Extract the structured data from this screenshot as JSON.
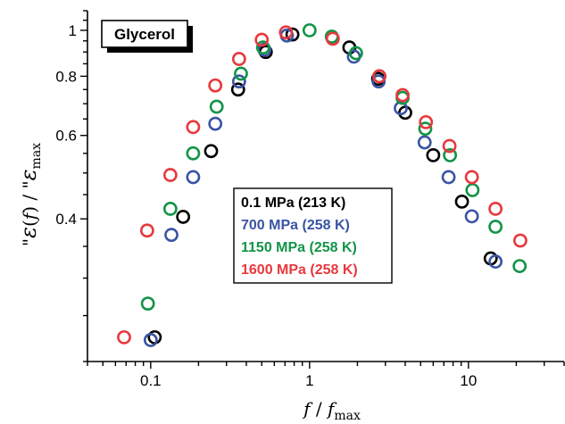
{
  "chart_data": {
    "type": "scatter",
    "x_scale": "log",
    "y_scale": "log",
    "xlim": [
      0.04,
      40
    ],
    "ylim": [
      0.2,
      1.1
    ],
    "x_ticks": [
      {
        "value": 0.1,
        "label": "0.1"
      },
      {
        "value": 1,
        "label": "1"
      },
      {
        "value": 10,
        "label": "10"
      }
    ],
    "y_ticks": [
      {
        "value": 0.4,
        "label": "0.4"
      },
      {
        "value": 0.6,
        "label": "0.6"
      },
      {
        "value": 0.8,
        "label": "0.8"
      },
      {
        "value": 1,
        "label": "1"
      }
    ],
    "xlabel": {
      "main": "f",
      "sep": " / ",
      "var": "f",
      "sub": "max"
    },
    "ylabel": {
      "dblprime": "\"",
      "eps": "ε",
      "paren_open": "(",
      "f": "f",
      "paren_close": ")",
      "sep": " / ",
      "sub": "max"
    },
    "sample_label": "Glycerol",
    "legend_position": "center",
    "series": [
      {
        "name": "0.1 MPa (213 K)",
        "color": "#000000",
        "points": [
          [
            0.106,
            0.225
          ],
          [
            0.16,
            0.404
          ],
          [
            0.24,
            0.556
          ],
          [
            0.355,
            0.75
          ],
          [
            0.53,
            0.9
          ],
          [
            0.78,
            0.98
          ],
          [
            1.78,
            0.92
          ],
          [
            2.7,
            0.79
          ],
          [
            4.0,
            0.67
          ],
          [
            6.0,
            0.545
          ],
          [
            9.1,
            0.435
          ],
          [
            13.8,
            0.33
          ]
        ]
      },
      {
        "name": "700 MPa (258 K)",
        "color": "#3a54a4",
        "points": [
          [
            0.1,
            0.222
          ],
          [
            0.135,
            0.37
          ],
          [
            0.185,
            0.49
          ],
          [
            0.255,
            0.635
          ],
          [
            0.36,
            0.78
          ],
          [
            0.52,
            0.91
          ],
          [
            0.72,
            0.975
          ],
          [
            1.9,
            0.88
          ],
          [
            2.72,
            0.78
          ],
          [
            3.75,
            0.685
          ],
          [
            5.3,
            0.58
          ],
          [
            7.5,
            0.49
          ],
          [
            10.5,
            0.405
          ],
          [
            14.8,
            0.325
          ]
        ]
      },
      {
        "name": "1150 MPa (258 K)",
        "color": "#129447",
        "points": [
          [
            0.096,
            0.265
          ],
          [
            0.133,
            0.42
          ],
          [
            0.185,
            0.55
          ],
          [
            0.26,
            0.69
          ],
          [
            0.37,
            0.81
          ],
          [
            0.51,
            0.92
          ],
          [
            1.0,
            1.0
          ],
          [
            1.38,
            0.97
          ],
          [
            1.96,
            0.895
          ],
          [
            2.75,
            0.8
          ],
          [
            3.85,
            0.72
          ],
          [
            5.35,
            0.62
          ],
          [
            7.65,
            0.545
          ],
          [
            10.6,
            0.46
          ],
          [
            14.8,
            0.385
          ],
          [
            21.0,
            0.318
          ]
        ]
      },
      {
        "name": "1600 MPa (258 K)",
        "color": "#e8383d",
        "points": [
          [
            0.068,
            0.225
          ],
          [
            0.095,
            0.378
          ],
          [
            0.133,
            0.495
          ],
          [
            0.185,
            0.625
          ],
          [
            0.255,
            0.765
          ],
          [
            0.36,
            0.87
          ],
          [
            0.5,
            0.955
          ],
          [
            0.71,
            0.99
          ],
          [
            1.4,
            0.96
          ],
          [
            2.75,
            0.8
          ],
          [
            3.85,
            0.73
          ],
          [
            5.4,
            0.64
          ],
          [
            7.6,
            0.57
          ],
          [
            10.5,
            0.49
          ],
          [
            14.8,
            0.42
          ],
          [
            21.2,
            0.36
          ]
        ]
      }
    ]
  }
}
